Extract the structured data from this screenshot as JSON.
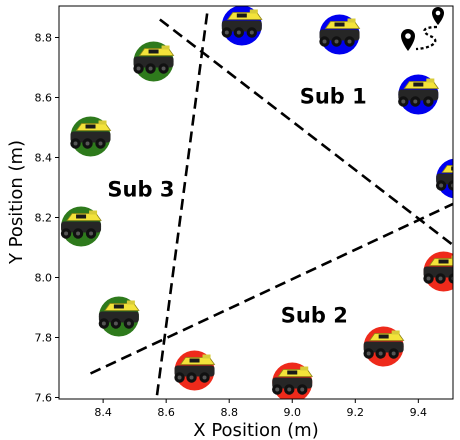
{
  "chart_data": {
    "type": "scatter",
    "xlabel": "X Position (m)",
    "ylabel": "Y Position (m)",
    "xlim": [
      8.26,
      9.51
    ],
    "ylim": [
      7.595,
      8.905
    ],
    "xticks": [
      8.4,
      8.6,
      8.8,
      9.0,
      9.2,
      9.4
    ],
    "yticks": [
      7.6,
      7.8,
      8.0,
      8.2,
      8.4,
      8.6,
      8.8
    ],
    "xtick_labels": [
      "8.4",
      "8.6",
      "8.8",
      "9.0",
      "9.2",
      "9.4"
    ],
    "ytick_labels": [
      "7.6",
      "7.8",
      "8.0",
      "8.2",
      "8.4",
      "8.6",
      "8.8"
    ],
    "grid": false,
    "colors": {
      "sub1": "#0000ee",
      "sub2": "#ee2a1b",
      "sub3": "#2e7a1c"
    },
    "series": [
      {
        "key": "sub1",
        "points": [
          {
            "x": 8.84,
            "y": 8.84
          },
          {
            "x": 9.15,
            "y": 8.81
          },
          {
            "x": 9.4,
            "y": 8.61
          },
          {
            "x": 9.52,
            "y": 8.33
          }
        ]
      },
      {
        "key": "sub2",
        "points": [
          {
            "x": 9.48,
            "y": 8.02
          },
          {
            "x": 9.29,
            "y": 7.77
          },
          {
            "x": 9.0,
            "y": 7.65
          },
          {
            "x": 8.69,
            "y": 7.69
          }
        ]
      },
      {
        "key": "sub3",
        "points": [
          {
            "x": 8.56,
            "y": 8.72
          },
          {
            "x": 8.36,
            "y": 8.47
          },
          {
            "x": 8.33,
            "y": 8.17
          },
          {
            "x": 8.45,
            "y": 7.87
          }
        ]
      }
    ],
    "boundaries": [
      {
        "from": {
          "x": 8.73,
          "y": 8.88
        },
        "to": {
          "x": 8.57,
          "y": 7.6
        }
      },
      {
        "from": {
          "x": 8.58,
          "y": 8.86
        },
        "to": {
          "x": 9.52,
          "y": 8.1
        }
      },
      {
        "from": {
          "x": 8.36,
          "y": 7.68
        },
        "to": {
          "x": 9.52,
          "y": 8.25
        }
      }
    ],
    "annotations": [
      {
        "text": "Sub 1",
        "x": 9.13,
        "y": 8.58
      },
      {
        "text": "Sub 2",
        "x": 9.07,
        "y": 7.85
      },
      {
        "text": "Sub 3",
        "x": 8.52,
        "y": 8.27
      }
    ],
    "legend_icon": "route-map-pin-icon"
  }
}
